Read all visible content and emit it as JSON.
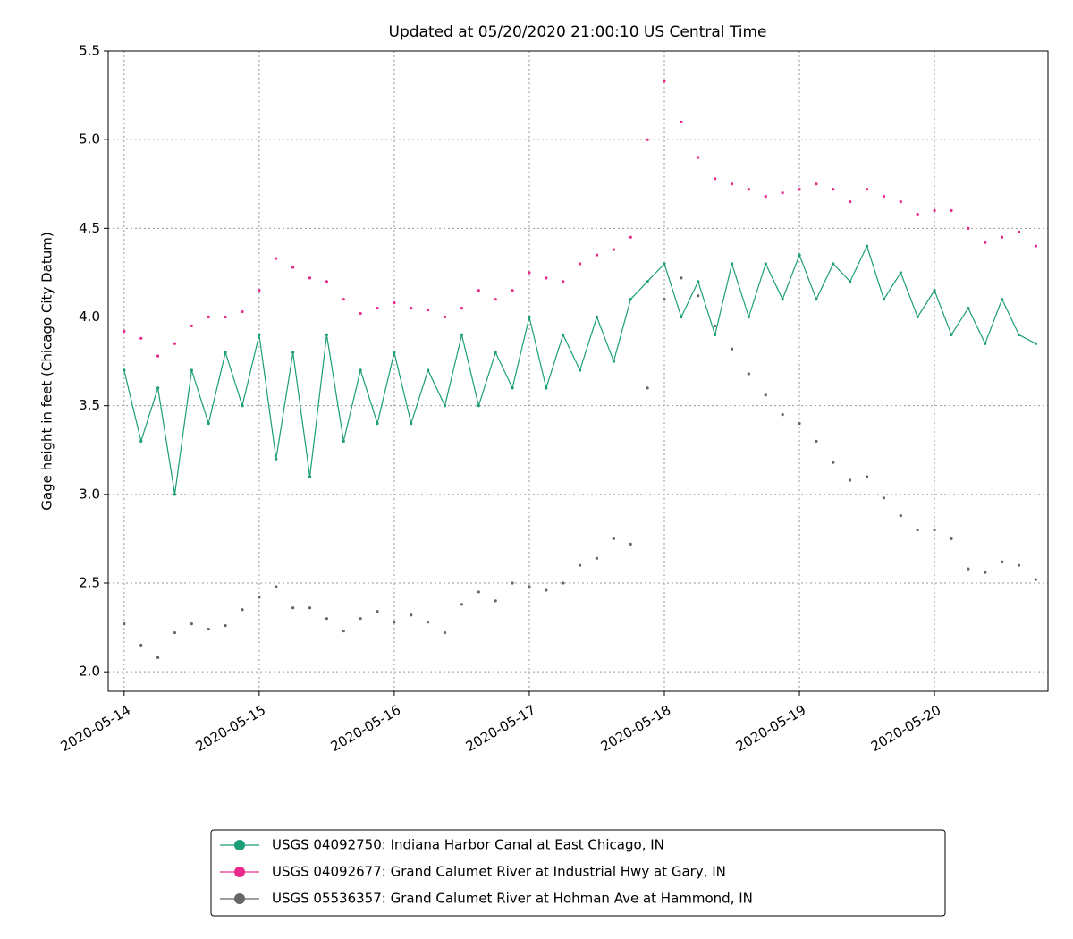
{
  "chart_data": {
    "type": "line",
    "title": "Updated at 05/20/2020 21:00:10 US Central Time",
    "y_label": "Gage height in feet (Chicago City Datum)",
    "x": [
      "2020-05-14T00:00",
      "2020-05-14T03:00",
      "2020-05-14T06:00",
      "2020-05-14T09:00",
      "2020-05-14T12:00",
      "2020-05-14T15:00",
      "2020-05-14T18:00",
      "2020-05-14T21:00",
      "2020-05-15T00:00",
      "2020-05-15T03:00",
      "2020-05-15T06:00",
      "2020-05-15T09:00",
      "2020-05-15T12:00",
      "2020-05-15T15:00",
      "2020-05-15T18:00",
      "2020-05-15T21:00",
      "2020-05-16T00:00",
      "2020-05-16T03:00",
      "2020-05-16T06:00",
      "2020-05-16T09:00",
      "2020-05-16T12:00",
      "2020-05-16T15:00",
      "2020-05-16T18:00",
      "2020-05-16T21:00",
      "2020-05-17T00:00",
      "2020-05-17T03:00",
      "2020-05-17T06:00",
      "2020-05-17T09:00",
      "2020-05-17T12:00",
      "2020-05-17T15:00",
      "2020-05-17T18:00",
      "2020-05-17T21:00",
      "2020-05-18T00:00",
      "2020-05-18T03:00",
      "2020-05-18T06:00",
      "2020-05-18T09:00",
      "2020-05-18T12:00",
      "2020-05-18T15:00",
      "2020-05-18T18:00",
      "2020-05-18T21:00",
      "2020-05-19T00:00",
      "2020-05-19T03:00",
      "2020-05-19T06:00",
      "2020-05-19T09:00",
      "2020-05-19T12:00",
      "2020-05-19T15:00",
      "2020-05-19T18:00",
      "2020-05-19T21:00",
      "2020-05-20T00:00",
      "2020-05-20T03:00",
      "2020-05-20T06:00",
      "2020-05-20T09:00",
      "2020-05-20T12:00",
      "2020-05-20T15:00",
      "2020-05-20T18:00"
    ],
    "series": [
      {
        "name": "USGS 04092750: Indiana Harbor Canal at East Chicago, IN",
        "color": "#1b9e77",
        "linestyle": "solid",
        "values": [
          3.7,
          3.3,
          3.6,
          3.0,
          3.7,
          3.4,
          3.8,
          3.5,
          3.9,
          3.2,
          3.8,
          3.1,
          3.9,
          3.3,
          3.7,
          3.4,
          3.8,
          3.4,
          3.7,
          3.5,
          3.9,
          3.5,
          3.8,
          3.6,
          4.0,
          3.6,
          3.9,
          3.7,
          4.0,
          3.75,
          4.1,
          4.2,
          4.3,
          4.0,
          4.2,
          3.9,
          4.3,
          4.0,
          4.3,
          4.1,
          4.35,
          4.1,
          4.3,
          4.2,
          4.4,
          4.1,
          4.25,
          4.0,
          4.15,
          3.9,
          4.05,
          3.85,
          4.1,
          3.9,
          3.85
        ]
      },
      {
        "name": "USGS 04092677: Grand Calumet River at Industrial Hwy at Gary, IN",
        "color": "#e7298a",
        "linestyle": "none",
        "values": [
          3.92,
          3.88,
          3.78,
          3.85,
          3.95,
          4.0,
          4.0,
          4.03,
          4.15,
          4.33,
          4.28,
          4.22,
          4.2,
          4.1,
          4.02,
          4.05,
          4.08,
          4.05,
          4.04,
          4.0,
          4.05,
          4.15,
          4.1,
          4.15,
          4.25,
          4.22,
          4.2,
          4.3,
          4.35,
          4.38,
          4.45,
          5.0,
          5.33,
          5.1,
          4.9,
          4.78,
          4.75,
          4.72,
          4.68,
          4.7,
          4.72,
          4.75,
          4.72,
          4.65,
          4.72,
          4.68,
          4.65,
          4.58,
          4.6,
          4.6,
          4.5,
          4.42,
          4.45,
          4.48,
          4.4
        ]
      },
      {
        "name": "USGS 05536357: Grand Calumet River at Hohman Ave at Hammond, IN",
        "color": "#666666",
        "linestyle": "none",
        "values": [
          2.27,
          2.15,
          2.08,
          2.22,
          2.27,
          2.24,
          2.26,
          2.35,
          2.42,
          2.48,
          2.36,
          2.36,
          2.3,
          2.23,
          2.3,
          2.34,
          2.28,
          2.32,
          2.28,
          2.22,
          2.38,
          2.45,
          2.4,
          2.5,
          2.48,
          2.46,
          2.5,
          2.6,
          2.64,
          2.75,
          2.72,
          3.6,
          4.1,
          4.22,
          4.12,
          3.95,
          3.82,
          3.68,
          3.56,
          3.45,
          3.4,
          3.3,
          3.18,
          3.08,
          3.1,
          2.98,
          2.88,
          2.8,
          2.8,
          2.75,
          2.58,
          2.56,
          2.62,
          2.6,
          2.52
        ]
      }
    ],
    "xlim": [
      "2020-05-13T21:10",
      "2020-05-20T20:10"
    ],
    "xticks": [
      "2020-05-14",
      "2020-05-15",
      "2020-05-16",
      "2020-05-17",
      "2020-05-18",
      "2020-05-19",
      "2020-05-20"
    ],
    "ylim": [
      1.89,
      5.5
    ],
    "yticks": [
      {
        "value": 2,
        "label": "2.0"
      },
      2.5,
      {
        "value": 3,
        "label": "3.0"
      },
      3.5,
      {
        "value": 4,
        "label": "4.0"
      },
      4.5,
      {
        "value": 5,
        "label": "5.0"
      },
      5.5
    ],
    "grid": true,
    "legend": "below"
  }
}
